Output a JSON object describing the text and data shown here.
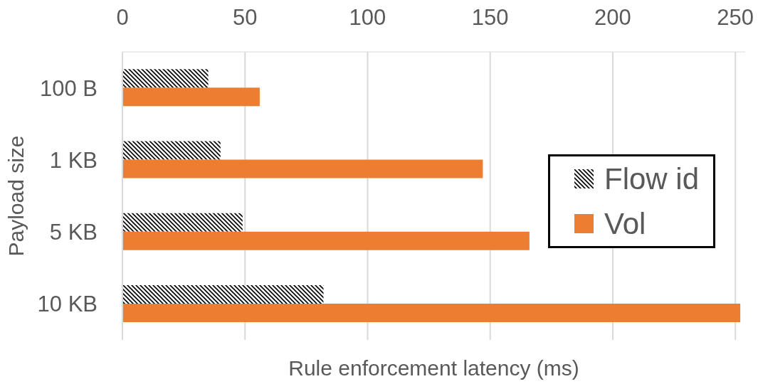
{
  "chart_data": {
    "type": "bar",
    "orientation": "horizontal",
    "xlabel": "Rule enforcement latency (ms)",
    "ylabel": "Payload size",
    "categories": [
      "100 B",
      "1 KB",
      "5 KB",
      "10 KB"
    ],
    "series": [
      {
        "name": "Flow id",
        "color": "#000000",
        "values": [
          35,
          40,
          49,
          82
        ]
      },
      {
        "name": "Vol",
        "color": "#ed7d31",
        "values": [
          56,
          147,
          166,
          252
        ]
      }
    ],
    "xlim": [
      0,
      254
    ],
    "xticks": [
      0,
      50,
      100,
      150,
      200,
      250
    ],
    "grid": "x",
    "legend": "right"
  }
}
